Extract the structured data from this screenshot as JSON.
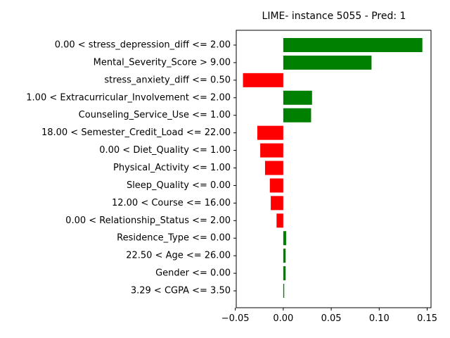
{
  "chart_data": {
    "type": "bar",
    "orientation": "horizontal",
    "title": "LIME- instance 5055 - Pred: 1",
    "xlabel": "",
    "ylabel": "",
    "xlim": [
      -0.049,
      0.154
    ],
    "xticks": [
      -0.05,
      0.0,
      0.05,
      0.1,
      0.15
    ],
    "xtick_labels": [
      "−0.05",
      "0.00",
      "0.05",
      "0.10",
      "0.15"
    ],
    "grid": false,
    "legend": "none",
    "positive_color": "#008000",
    "negative_color": "#ff0000",
    "categories": [
      "0.00 < stress_depression_diff <= 2.00",
      "Mental_Severity_Score > 9.00",
      "stress_anxiety_diff <= 0.50",
      "1.00 < Extracurricular_Involvement <= 2.00",
      "Counseling_Service_Use <= 1.00",
      "18.00 < Semester_Credit_Load <= 22.00",
      "0.00 < Diet_Quality <= 1.00",
      "Physical_Activity <= 1.00",
      "Sleep_Quality <= 0.00",
      "12.00 < Course <= 16.00",
      "0.00 < Relationship_Status <= 2.00",
      "Residence_Type <= 0.00",
      "22.50 < Age <= 26.00",
      "Gender <= 0.00",
      "3.29 < CGPA <= 3.50"
    ],
    "values": [
      0.145,
      0.092,
      -0.042,
      0.03,
      0.029,
      -0.027,
      -0.024,
      -0.019,
      -0.014,
      -0.013,
      -0.007,
      0.003,
      0.0025,
      0.0025,
      0.001
    ]
  }
}
